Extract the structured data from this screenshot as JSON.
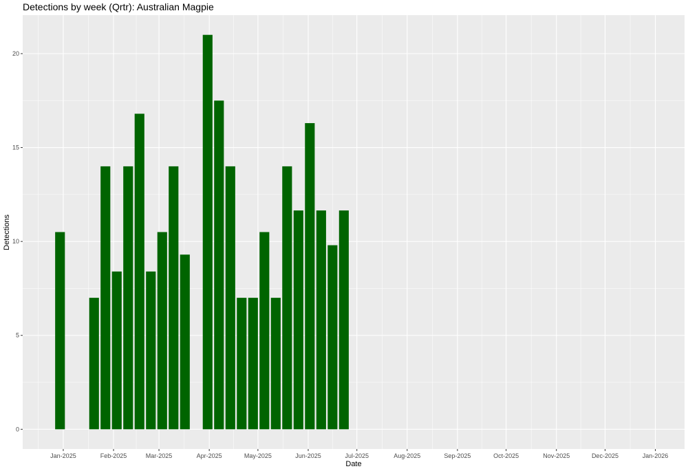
{
  "chart_data": {
    "type": "bar",
    "title": "Detections by week (Qrtr): Australian Magpie",
    "xlabel": "Date",
    "ylabel": "Detections",
    "x_axis": {
      "type": "date",
      "range": [
        "2024-12-07",
        "2026-01-19"
      ],
      "ticks": [
        {
          "date": "2025-01-01",
          "label": "Jan-2025"
        },
        {
          "date": "2025-02-01",
          "label": "Feb-2025"
        },
        {
          "date": "2025-03-01",
          "label": "Mar-2025"
        },
        {
          "date": "2025-04-01",
          "label": "Apr-2025"
        },
        {
          "date": "2025-05-01",
          "label": "May-2025"
        },
        {
          "date": "2025-06-01",
          "label": "Jun-2025"
        },
        {
          "date": "2025-07-01",
          "label": "Jul-2025"
        },
        {
          "date": "2025-08-01",
          "label": "Aug-2025"
        },
        {
          "date": "2025-09-01",
          "label": "Sep-2025"
        },
        {
          "date": "2025-10-01",
          "label": "Oct-2025"
        },
        {
          "date": "2025-11-01",
          "label": "Nov-2025"
        },
        {
          "date": "2025-12-01",
          "label": "Dec-2025"
        },
        {
          "date": "2026-01-01",
          "label": "Jan-2026"
        }
      ]
    },
    "y_axis": {
      "range": [
        -1.05,
        22.05
      ],
      "ticks": [
        0,
        5,
        10,
        15,
        20
      ]
    },
    "bar_width_days": 6,
    "bar_color": "#006400",
    "panel_color": "#EBEBEB",
    "grid": true,
    "legend": "none",
    "bars": [
      {
        "date": "2024-12-30",
        "value": 10.5
      },
      {
        "date": "2025-01-20",
        "value": 7.0
      },
      {
        "date": "2025-01-27",
        "value": 14.0
      },
      {
        "date": "2025-02-03",
        "value": 8.4
      },
      {
        "date": "2025-02-10",
        "value": 14.0
      },
      {
        "date": "2025-02-17",
        "value": 16.8
      },
      {
        "date": "2025-02-24",
        "value": 8.4
      },
      {
        "date": "2025-03-03",
        "value": 10.5
      },
      {
        "date": "2025-03-10",
        "value": 14.0
      },
      {
        "date": "2025-03-17",
        "value": 9.3
      },
      {
        "date": "2025-03-31",
        "value": 21.0
      },
      {
        "date": "2025-04-07",
        "value": 17.5
      },
      {
        "date": "2025-04-14",
        "value": 14.0
      },
      {
        "date": "2025-04-21",
        "value": 7.0
      },
      {
        "date": "2025-04-28",
        "value": 7.0
      },
      {
        "date": "2025-05-05",
        "value": 10.5
      },
      {
        "date": "2025-05-12",
        "value": 7.0
      },
      {
        "date": "2025-05-19",
        "value": 14.0
      },
      {
        "date": "2025-05-26",
        "value": 11.65
      },
      {
        "date": "2025-06-02",
        "value": 16.3
      },
      {
        "date": "2025-06-09",
        "value": 11.65
      },
      {
        "date": "2025-06-16",
        "value": 9.8
      },
      {
        "date": "2025-06-23",
        "value": 11.65
      }
    ]
  }
}
